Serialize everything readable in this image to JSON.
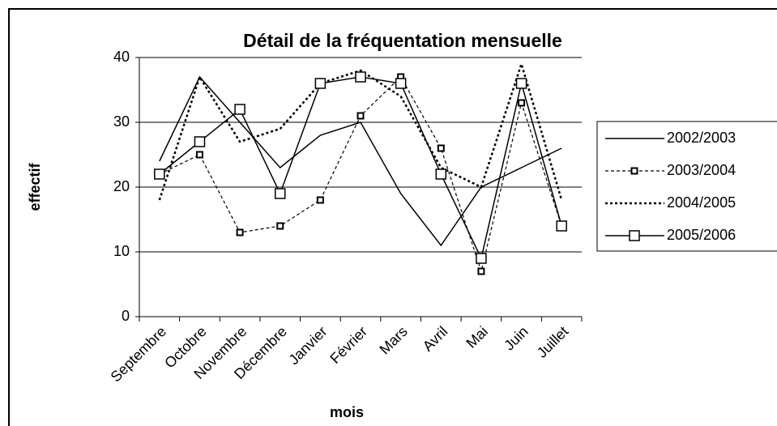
{
  "chart_data": {
    "type": "line",
    "title": "Détail de la fréquentation mensuelle",
    "x_label": "mois",
    "y_label": "effectif",
    "categories": [
      "Septembre",
      "Octobre",
      "Novembre",
      "Décembre",
      "Janvier",
      "Février",
      "Mars",
      "Avril",
      "Mai",
      "Juin",
      "Juillet"
    ],
    "series": [
      {
        "name": "2002/2003",
        "color": "#000000",
        "line_style": "solid",
        "marker": "none",
        "values": [
          24,
          37,
          30,
          23,
          28,
          30,
          19,
          11,
          20,
          23,
          26
        ]
      },
      {
        "name": "2003/2004",
        "color": "#000000",
        "line_style": "dotted",
        "marker": "small-square",
        "values": [
          22,
          25,
          13,
          14,
          18,
          31,
          37,
          26,
          7,
          33,
          14
        ]
      },
      {
        "name": "2004/2005",
        "color": "#000000",
        "line_style": "dotted-bold",
        "marker": "none",
        "values": [
          18,
          37,
          27,
          29,
          36,
          38,
          34,
          23,
          20,
          39,
          18
        ]
      },
      {
        "name": "2005/2006",
        "color": "#000000",
        "line_style": "solid",
        "marker": "square",
        "values": [
          22,
          27,
          32,
          19,
          36,
          37,
          36,
          22,
          9,
          36,
          14
        ]
      }
    ],
    "ylim": [
      0,
      40
    ],
    "yticks": [
      0,
      10,
      20,
      30,
      40
    ],
    "grid": true,
    "legend": "right"
  }
}
